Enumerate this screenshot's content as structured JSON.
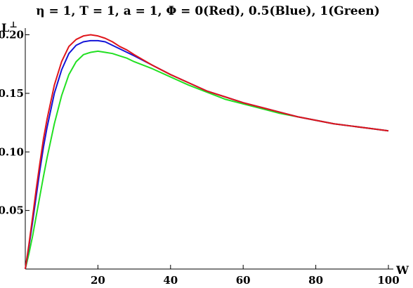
{
  "chart_data": {
    "type": "line",
    "title": "η = 1, T = 1, a = 1, Φ = 0(Red), 0.5(Blue), 1(Green)",
    "xlabel": "W",
    "ylabel": "L",
    "ylabel_superscript": "⊥",
    "xlim": [
      0,
      100
    ],
    "ylim": [
      0,
      0.205
    ],
    "x_ticks": [
      20,
      40,
      60,
      80,
      100
    ],
    "x_tick_labels": [
      "20",
      "40",
      "60",
      "80",
      "100"
    ],
    "y_ticks": [
      0.05,
      0.1,
      0.15,
      0.2
    ],
    "y_tick_labels": [
      "0.05",
      "0.10",
      "0.15",
      "0.20"
    ],
    "grid": false,
    "x": [
      0,
      1,
      2,
      3,
      4,
      5,
      6,
      8,
      10,
      12,
      14,
      16,
      18,
      20,
      22,
      24,
      26,
      28,
      30,
      35,
      40,
      45,
      50,
      55,
      60,
      65,
      70,
      75,
      80,
      85,
      90,
      95,
      100
    ],
    "series": [
      {
        "color": "#e0151b",
        "values": [
          0,
          0.021,
          0.044,
          0.068,
          0.09,
          0.111,
          0.128,
          0.157,
          0.177,
          0.19,
          0.196,
          0.199,
          0.2,
          0.199,
          0.197,
          0.194,
          0.19,
          0.187,
          0.183,
          0.174,
          0.166,
          0.159,
          0.152,
          0.147,
          0.142,
          0.138,
          0.134,
          0.13,
          0.127,
          0.124,
          0.122,
          0.12,
          0.118
        ]
      },
      {
        "color": "#1414d8",
        "values": [
          0,
          0.019,
          0.04,
          0.062,
          0.084,
          0.104,
          0.121,
          0.15,
          0.17,
          0.184,
          0.191,
          0.194,
          0.195,
          0.195,
          0.194,
          0.191,
          0.188,
          0.185,
          0.182,
          0.174,
          0.166,
          0.159,
          0.152,
          0.147,
          0.142,
          0.138,
          0.134,
          0.13,
          0.127,
          0.124,
          0.122,
          0.12,
          0.118
        ]
      },
      {
        "color": "#22e022",
        "values": [
          0,
          0.013,
          0.028,
          0.045,
          0.062,
          0.079,
          0.095,
          0.124,
          0.148,
          0.166,
          0.177,
          0.183,
          0.185,
          0.186,
          0.185,
          0.184,
          0.182,
          0.18,
          0.177,
          0.171,
          0.164,
          0.157,
          0.151,
          0.145,
          0.141,
          0.137,
          0.133,
          0.13,
          0.127,
          0.124,
          0.122,
          0.12,
          0.118
        ]
      }
    ]
  }
}
